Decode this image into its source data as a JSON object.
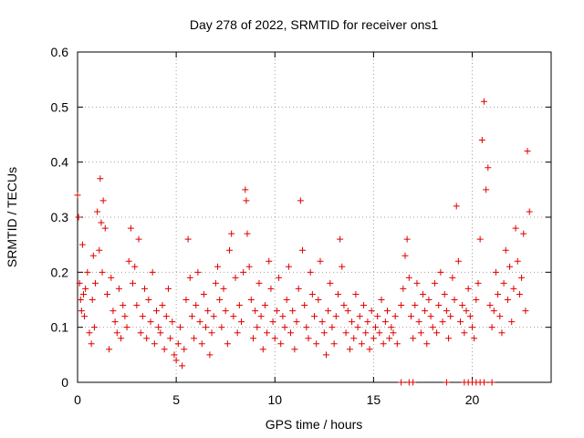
{
  "chart_data": {
    "type": "scatter",
    "title": "Day 278 of 2022, SRMTID for receiver ons1",
    "xlabel": "GPS time / hours",
    "ylabel": "SRMTID / TECUs",
    "xlim": [
      0,
      24
    ],
    "ylim": [
      0,
      0.6
    ],
    "xticks": [
      0,
      5,
      10,
      15,
      20
    ],
    "xtick_labels": [
      "0",
      "5",
      "10",
      "15",
      "20"
    ],
    "yticks": [
      0,
      0.1,
      0.2,
      0.3,
      0.4,
      0.5,
      0.6
    ],
    "ytick_labels": [
      "0",
      "0.1",
      "0.2",
      "0.3",
      "0.4",
      "0.5",
      "0.6"
    ],
    "grid": true,
    "marker": "+",
    "colors": {
      "series": "#e00000",
      "grid": "#a0a0a0",
      "axis": "#000000"
    },
    "series": [
      {
        "name": "SRMTID",
        "x": [
          0.0,
          0.05,
          0.1,
          0.15,
          0.2,
          0.25,
          0.3,
          0.35,
          0.4,
          0.5,
          0.6,
          0.7,
          0.75,
          0.8,
          0.85,
          0.9,
          1.0,
          1.1,
          1.15,
          1.2,
          1.25,
          1.3,
          1.4,
          1.5,
          1.6,
          1.7,
          1.8,
          1.9,
          2.0,
          2.1,
          2.2,
          2.3,
          2.4,
          2.5,
          2.6,
          2.7,
          2.8,
          2.9,
          3.0,
          3.1,
          3.2,
          3.3,
          3.4,
          3.5,
          3.6,
          3.7,
          3.8,
          3.9,
          4.0,
          4.1,
          4.2,
          4.3,
          4.4,
          4.5,
          4.6,
          4.7,
          4.8,
          4.9,
          5.0,
          5.1,
          5.2,
          5.3,
          5.4,
          5.5,
          5.6,
          5.7,
          5.8,
          5.9,
          6.0,
          6.1,
          6.2,
          6.3,
          6.4,
          6.5,
          6.6,
          6.7,
          6.8,
          6.9,
          7.0,
          7.1,
          7.2,
          7.3,
          7.4,
          7.5,
          7.6,
          7.7,
          7.8,
          7.9,
          8.0,
          8.1,
          8.2,
          8.3,
          8.4,
          8.5,
          8.55,
          8.6,
          8.7,
          8.8,
          8.9,
          9.0,
          9.1,
          9.2,
          9.3,
          9.4,
          9.5,
          9.6,
          9.7,
          9.8,
          9.9,
          10.0,
          10.1,
          10.2,
          10.3,
          10.4,
          10.5,
          10.6,
          10.7,
          10.8,
          10.9,
          11.0,
          11.1,
          11.2,
          11.3,
          11.4,
          11.5,
          11.6,
          11.7,
          11.8,
          11.9,
          12.0,
          12.1,
          12.2,
          12.3,
          12.4,
          12.5,
          12.6,
          12.7,
          12.8,
          12.9,
          13.0,
          13.1,
          13.2,
          13.3,
          13.4,
          13.5,
          13.6,
          13.7,
          13.8,
          13.9,
          14.0,
          14.1,
          14.2,
          14.3,
          14.4,
          14.5,
          14.6,
          14.7,
          14.8,
          14.9,
          15.0,
          15.1,
          15.2,
          15.3,
          15.4,
          15.5,
          15.6,
          15.7,
          15.8,
          15.9,
          16.0,
          16.1,
          16.2,
          16.4,
          16.5,
          16.6,
          16.7,
          16.8,
          16.9,
          17.0,
          17.1,
          17.2,
          17.3,
          17.4,
          17.5,
          17.6,
          17.7,
          17.8,
          17.9,
          18.0,
          18.1,
          18.2,
          18.3,
          18.4,
          18.5,
          18.6,
          18.7,
          18.8,
          18.9,
          19.0,
          19.1,
          19.2,
          19.3,
          19.4,
          19.5,
          19.6,
          19.7,
          19.8,
          19.9,
          20.0,
          20.1,
          20.2,
          20.3,
          20.4,
          20.5,
          20.6,
          20.7,
          20.8,
          20.9,
          21.0,
          21.1,
          21.2,
          21.3,
          21.4,
          21.5,
          21.6,
          21.7,
          21.8,
          21.9,
          22.0,
          22.1,
          22.2,
          22.3,
          22.4,
          22.5,
          22.6,
          22.7,
          22.8,
          22.9,
          16.4,
          16.8,
          17.0,
          18.7,
          19.6,
          19.8,
          20.0,
          20.2,
          20.4,
          20.6,
          21.0
        ],
        "y": [
          0.34,
          0.3,
          0.18,
          0.15,
          0.13,
          0.25,
          0.16,
          0.12,
          0.17,
          0.2,
          0.09,
          0.07,
          0.15,
          0.23,
          0.1,
          0.18,
          0.31,
          0.24,
          0.37,
          0.29,
          0.2,
          0.33,
          0.28,
          0.16,
          0.06,
          0.19,
          0.13,
          0.11,
          0.09,
          0.17,
          0.08,
          0.14,
          0.12,
          0.1,
          0.22,
          0.28,
          0.18,
          0.21,
          0.14,
          0.26,
          0.09,
          0.12,
          0.17,
          0.08,
          0.15,
          0.11,
          0.2,
          0.07,
          0.13,
          0.1,
          0.09,
          0.14,
          0.06,
          0.12,
          0.17,
          0.08,
          0.11,
          0.05,
          0.04,
          0.07,
          0.1,
          0.03,
          0.06,
          0.15,
          0.26,
          0.19,
          0.12,
          0.08,
          0.14,
          0.2,
          0.11,
          0.07,
          0.16,
          0.1,
          0.13,
          0.05,
          0.09,
          0.12,
          0.18,
          0.21,
          0.15,
          0.1,
          0.17,
          0.13,
          0.07,
          0.24,
          0.27,
          0.12,
          0.19,
          0.09,
          0.14,
          0.11,
          0.2,
          0.35,
          0.33,
          0.27,
          0.21,
          0.15,
          0.08,
          0.13,
          0.1,
          0.18,
          0.12,
          0.06,
          0.14,
          0.09,
          0.22,
          0.17,
          0.11,
          0.08,
          0.13,
          0.19,
          0.07,
          0.12,
          0.1,
          0.15,
          0.21,
          0.09,
          0.13,
          0.06,
          0.11,
          0.17,
          0.33,
          0.24,
          0.14,
          0.1,
          0.08,
          0.2,
          0.16,
          0.12,
          0.07,
          0.15,
          0.22,
          0.11,
          0.09,
          0.05,
          0.13,
          0.18,
          0.1,
          0.07,
          0.12,
          0.16,
          0.26,
          0.21,
          0.14,
          0.09,
          0.13,
          0.06,
          0.11,
          0.08,
          0.16,
          0.1,
          0.12,
          0.07,
          0.14,
          0.09,
          0.11,
          0.06,
          0.13,
          0.08,
          0.1,
          0.12,
          0.09,
          0.15,
          0.07,
          0.11,
          0.13,
          0.08,
          0.1,
          0.09,
          0.12,
          0.07,
          0.14,
          0.17,
          0.23,
          0.26,
          0.19,
          0.12,
          0.08,
          0.14,
          0.18,
          0.11,
          0.09,
          0.16,
          0.13,
          0.07,
          0.15,
          0.12,
          0.1,
          0.18,
          0.09,
          0.14,
          0.2,
          0.11,
          0.16,
          0.13,
          0.08,
          0.12,
          0.19,
          0.15,
          0.32,
          0.22,
          0.11,
          0.14,
          0.09,
          0.13,
          0.17,
          0.12,
          0.1,
          0.08,
          0.15,
          0.18,
          0.26,
          0.44,
          0.51,
          0.35,
          0.39,
          0.14,
          0.1,
          0.13,
          0.2,
          0.16,
          0.12,
          0.09,
          0.18,
          0.24,
          0.15,
          0.21,
          0.11,
          0.17,
          0.28,
          0.22,
          0.16,
          0.19,
          0.27,
          0.13,
          0.42,
          0.31,
          0.0,
          0.0,
          0.0,
          0.0,
          0.0,
          0.0,
          0.0,
          0.0,
          0.0,
          0.0,
          0.0
        ]
      }
    ]
  }
}
